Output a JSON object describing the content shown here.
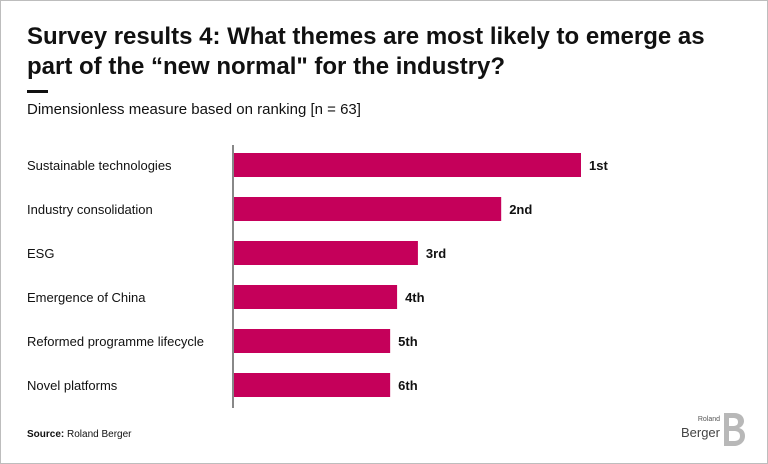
{
  "header": {
    "title": "Survey results 4: What themes are most likely to emerge as part of the “new normal\" for the industry?",
    "subtitle": "Dimensionless measure based on ranking [n = 63]"
  },
  "footer": {
    "source_label": "Source:",
    "source_value": "Roland Berger"
  },
  "logo": {
    "small_text": "Roland",
    "main_text": "Berger",
    "icon": "roland-berger-b-logo"
  },
  "colors": {
    "bar": "#c5005a",
    "axis": "#111111"
  },
  "chart_data": {
    "type": "bar",
    "orientation": "horizontal",
    "categories": [
      "Sustainable technologies",
      "Industry consolidation",
      "ESG",
      "Emergence of China",
      "Reformed programme lifecycle",
      "Novel platforms"
    ],
    "values": [
      100,
      77,
      53,
      47,
      45,
      45
    ],
    "data_labels": [
      "1st",
      "2nd",
      "3rd",
      "4th",
      "5th",
      "6th"
    ],
    "title": "Survey results 4: What themes are most likely to emerge as part of the “new normal\" for the industry?",
    "xlabel": "",
    "ylabel": "",
    "xlim": [
      0,
      100
    ],
    "grid": false,
    "legend": "none"
  }
}
